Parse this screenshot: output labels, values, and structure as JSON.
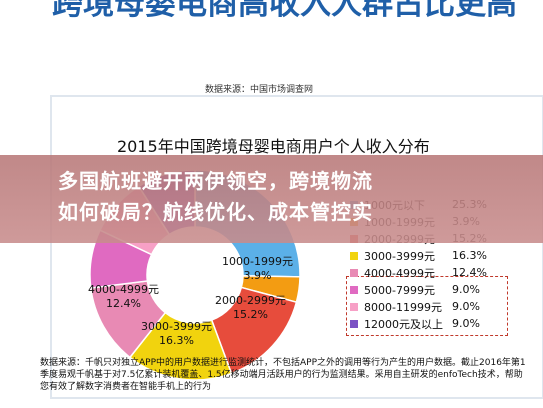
{
  "slide": {
    "title": "跨境母婴电商高收入人群占比更高",
    "source_top": "数据来源：中国市场调查网"
  },
  "banner": {
    "line1": "多国航班避开两伊领空，跨境物流",
    "line2": "如何破局？航线优化、成本管控实"
  },
  "note": "数据来源：千帆只对独立APP中的用户数据进行监测统计，不包括APP之外的调用等行为产生的用户数据。截止2016年第1季度易观千帆基于对7.5亿累计装机覆盖、1.5亿移动端月活跃用户的行为监测结果。采用自主研发的enfoTech技术，帮助您有效了解数字消费者在智能手机上的行为",
  "chart_data": {
    "type": "pie",
    "title": "2015年中国跨境母婴电商用户个人收入分布",
    "categories": [
      "1000元以下",
      "1000-1999元",
      "2000-2999元",
      "3000-3999元",
      "4000-4999元",
      "5000-7999元",
      "8000-11999元",
      "12000元及以上"
    ],
    "values": [
      25.3,
      3.9,
      15.2,
      16.3,
      12.4,
      9.0,
      9.0,
      9.0
    ],
    "value_labels": [
      "25.3%",
      "3.9%",
      "15.2%",
      "16.3%",
      "12.4%",
      "9.0%",
      "9.0%",
      "9.0%"
    ],
    "colors": [
      "#5bb0e8",
      "#f39c12",
      "#e74c3c",
      "#f1d30e",
      "#e88ab4",
      "#e06ac1",
      "#f7a0c6",
      "#7b52c4"
    ],
    "highlighted": [
      "5000-7999元",
      "8000-11999元",
      "12000元及以上"
    ]
  },
  "slice_labels": {
    "s1": "1000-1999元",
    "s1v": "3.9%",
    "s2": "2000-2999元",
    "s2v": "15.2%",
    "s3": "3000-3999元",
    "s3v": "16.3%",
    "s4": "4000-4999元",
    "s4v": "12.4%"
  }
}
